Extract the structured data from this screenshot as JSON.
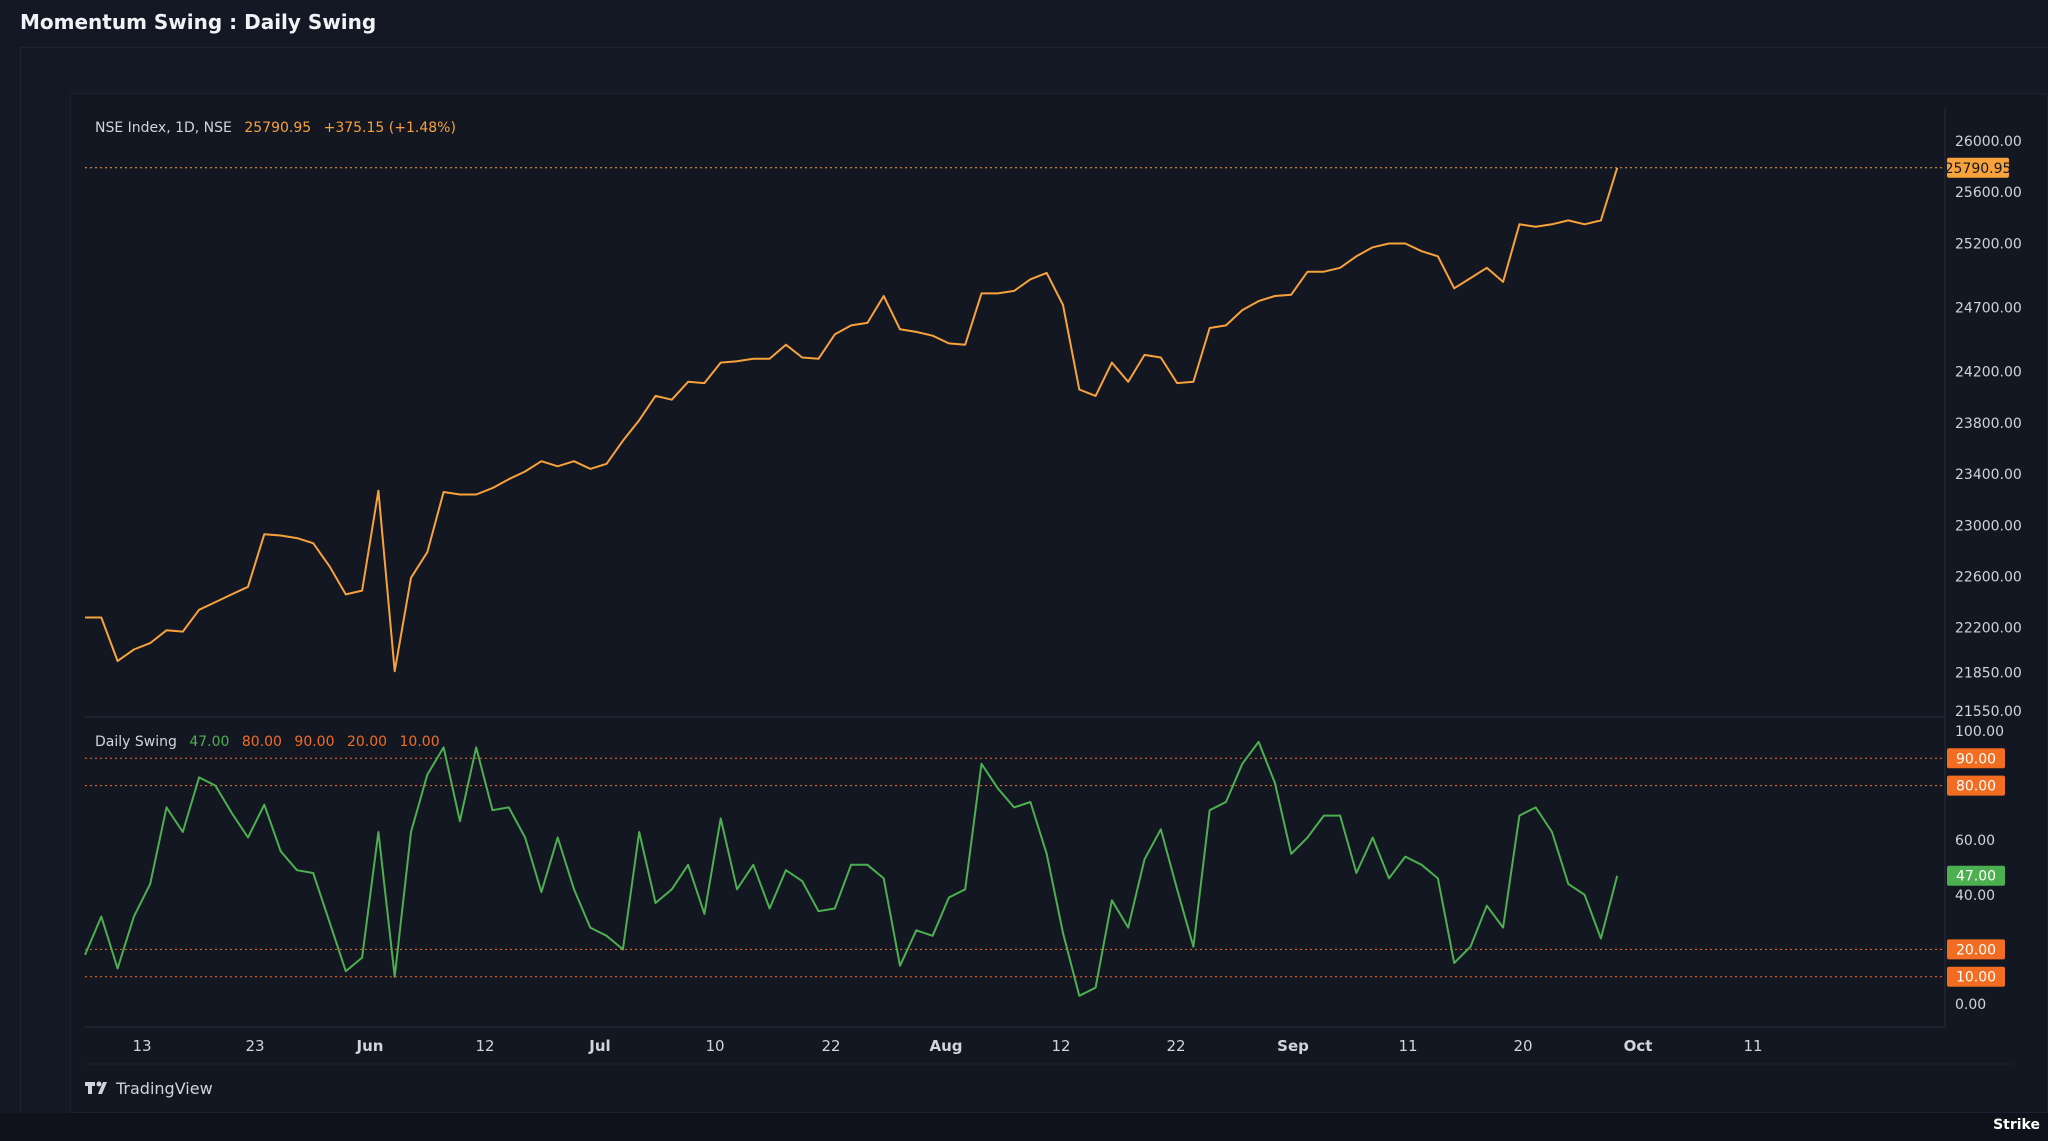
{
  "page": {
    "title": "Momentum Swing : Daily Swing"
  },
  "footer": {
    "brand": "TradingView",
    "corner_text": "Strike"
  },
  "colors": {
    "price_line": "#f7a23b",
    "osc_line": "#4caf50",
    "level_line": "#f26d21",
    "background": "#131722",
    "text": "#d1d4dc"
  },
  "chart_data": [
    {
      "type": "line",
      "name": "price-panel",
      "legend": {
        "symbol": "NSE Index, 1D, NSE",
        "last": "25790.95",
        "change": "+375.15 (+1.48%)"
      },
      "last_value_label": "25790.95",
      "yticks": [
        21550,
        21850,
        22200,
        22600,
        23000,
        23400,
        23800,
        24200,
        24700,
        25200,
        25600,
        26000
      ],
      "ytick_labels": [
        "21550.00",
        "21850.00",
        "22200.00",
        "22600.00",
        "23000.00",
        "23400.00",
        "23800.00",
        "24200.00",
        "24700.00",
        "25200.00",
        "25600.00",
        "26000.00"
      ],
      "ylim": [
        21550,
        26000
      ],
      "series": [
        {
          "values": [
            22280,
            22280,
            21940,
            22030,
            22080,
            22180,
            22170,
            22340,
            22400,
            22460,
            22520,
            22930,
            22920,
            22900,
            22860,
            22680,
            22460,
            22490,
            23270,
            21860,
            22590,
            22790,
            23260,
            23240,
            23240,
            23290,
            23360,
            23420,
            23500,
            23460,
            23500,
            23440,
            23480,
            23660,
            23820,
            24010,
            23980,
            24120,
            24110,
            24270,
            24280,
            24300,
            24300,
            24410,
            24310,
            24300,
            24490,
            24560,
            24580,
            24790,
            24530,
            24510,
            24480,
            24420,
            24410,
            24810,
            24810,
            24830,
            24920,
            24970,
            24720,
            24060,
            24010,
            24270,
            24120,
            24330,
            24310,
            24110,
            24120,
            24540,
            24560,
            24680,
            24750,
            24790,
            24800,
            24980,
            24980,
            25010,
            25100,
            25170,
            25200,
            25200,
            25140,
            25100,
            24850,
            24930,
            25010,
            24900,
            25350,
            25330,
            25350,
            25380,
            25350,
            25380,
            25790.95
          ]
        }
      ]
    },
    {
      "type": "line",
      "name": "oscillator-panel",
      "legend": {
        "title": "Daily Swing",
        "value": "47.00",
        "levels": [
          "80.00",
          "90.00",
          "20.00",
          "10.00"
        ]
      },
      "last_value_label": "47.00",
      "levels": [
        90,
        80,
        20,
        10
      ],
      "level_labels": [
        "90.00",
        "80.00",
        "20.00",
        "10.00"
      ],
      "yticks": [
        0,
        40,
        60,
        100
      ],
      "ytick_labels": [
        "0.00",
        "40.00",
        "60.00",
        "100.00"
      ],
      "ylim": [
        0,
        100
      ],
      "series": [
        {
          "values": [
            18,
            32,
            13,
            32,
            44,
            72,
            63,
            83,
            80,
            70,
            61,
            73,
            56,
            49,
            48,
            30,
            12,
            17,
            63,
            10,
            63,
            84,
            94,
            67,
            94,
            71,
            72,
            61,
            41,
            61,
            42,
            28,
            25,
            20,
            63,
            37,
            42,
            51,
            33,
            68,
            42,
            51,
            35,
            49,
            45,
            34,
            35,
            51,
            51,
            46,
            14,
            27,
            25,
            39,
            42,
            88,
            79,
            72,
            74,
            55,
            26,
            3,
            6,
            38,
            28,
            53,
            64,
            42,
            21,
            71,
            74,
            88,
            96,
            81,
            55,
            61,
            69,
            69,
            48,
            61,
            46,
            54,
            51,
            46,
            15,
            21,
            36,
            28,
            69,
            72,
            63,
            44,
            40,
            24,
            47
          ]
        }
      ]
    }
  ],
  "time_axis": {
    "labels": [
      "13",
      "23",
      "Jun",
      "12",
      "Jul",
      "10",
      "22",
      "Aug",
      "12",
      "22",
      "Sep",
      "11",
      "20",
      "Oct",
      "11"
    ],
    "bold": [
      false,
      false,
      true,
      false,
      true,
      false,
      false,
      true,
      false,
      false,
      true,
      false,
      false,
      true,
      false
    ]
  }
}
